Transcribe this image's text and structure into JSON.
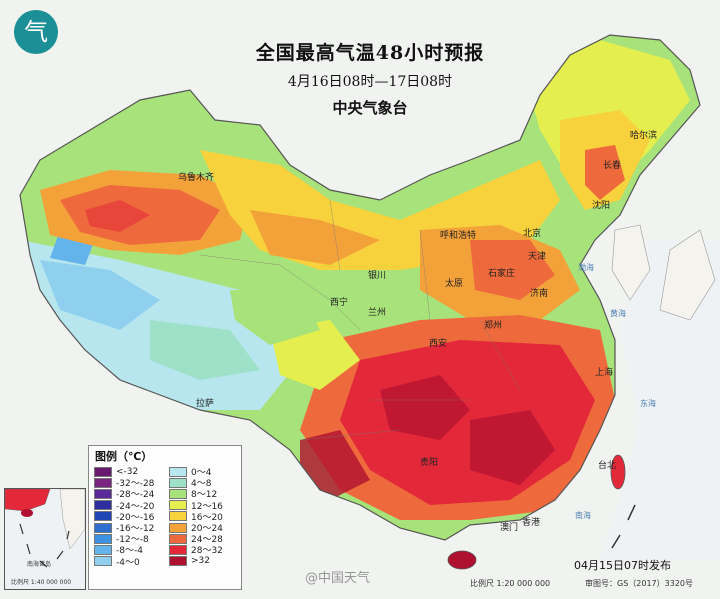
{
  "title": {
    "main": "全国最高气温48小时预报",
    "period": "4月16日08时—17日08时",
    "org": "中央气象台"
  },
  "legend": {
    "title": "图例（℃）",
    "items": [
      {
        "label": "<-32",
        "color": "#6a1a6e"
      },
      {
        "label": "-32～-28",
        "color": "#7a2380"
      },
      {
        "label": "-28～-24",
        "color": "#5a2a9a"
      },
      {
        "label": "-24～-20",
        "color": "#2e2f9e"
      },
      {
        "label": "-20～-16",
        "color": "#2146b4"
      },
      {
        "label": "-16～-12",
        "color": "#2f6fd0"
      },
      {
        "label": "-12～-8",
        "color": "#3f92e0"
      },
      {
        "label": "-8～-4",
        "color": "#62b4ea"
      },
      {
        "label": "-4～0",
        "color": "#8fd0ee"
      },
      {
        "label": "0～4",
        "color": "#b7e6ef"
      },
      {
        "label": "4～8",
        "color": "#9fe0c8"
      },
      {
        "label": "8～12",
        "color": "#a8e27a"
      },
      {
        "label": "12～16",
        "color": "#e4ef4f"
      },
      {
        "label": "16～20",
        "color": "#f7d23c"
      },
      {
        "label": "20～24",
        "color": "#f3a23a"
      },
      {
        "label": "24～28",
        "color": "#ee6a3c"
      },
      {
        "label": "28～32",
        "color": "#e3283a"
      },
      {
        "label": ">32",
        "color": "#b01030"
      }
    ]
  },
  "cities": [
    {
      "name": "乌鲁木齐"
    },
    {
      "name": "哈尔滨"
    },
    {
      "name": "长春"
    },
    {
      "name": "沈阳"
    },
    {
      "name": "呼和浩特"
    },
    {
      "name": "北京"
    },
    {
      "name": "天津"
    },
    {
      "name": "石家庄"
    },
    {
      "name": "太原"
    },
    {
      "name": "济南"
    },
    {
      "name": "银川"
    },
    {
      "name": "西宁"
    },
    {
      "name": "兰州"
    },
    {
      "name": "郑州"
    },
    {
      "name": "西安"
    },
    {
      "name": "拉萨"
    },
    {
      "name": "上海"
    },
    {
      "name": "贵阳"
    },
    {
      "name": "台北"
    },
    {
      "name": "澳门"
    },
    {
      "name": "香港"
    }
  ],
  "seas": [
    {
      "name": "渤海"
    },
    {
      "name": "黄海"
    },
    {
      "name": "东海"
    },
    {
      "name": "南海"
    }
  ],
  "inset": {
    "region": "南海诸岛",
    "scale": "比例尺 1:40 000 000"
  },
  "footer": {
    "issue": "04月15日07时发布",
    "scale": "比例尺 1:20 000 000",
    "review": "审图号：GS（2017）3320号"
  },
  "watermark": "@中国天气",
  "logo_glyph": "气"
}
